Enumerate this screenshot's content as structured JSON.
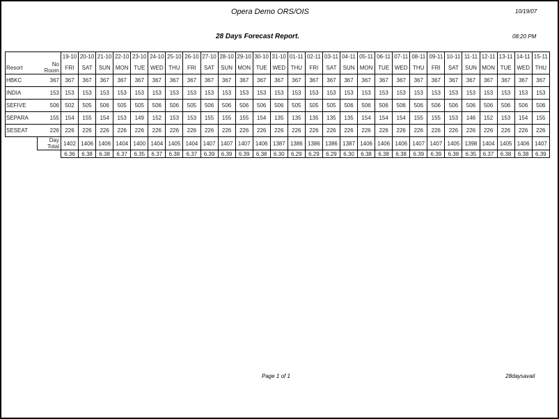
{
  "header": {
    "org": "Opera Demo ORS/OIS",
    "date": "10/19/07",
    "title": "28 Days Forecast Report.",
    "time": "08:20 PM"
  },
  "footer": {
    "page": "Page 1 of 1",
    "report_name": "28daysavail"
  },
  "table": {
    "col_resort": "Resort",
    "col_noroom": "No Room",
    "total_label": "Day Total",
    "dates": [
      "19-10",
      "20-10",
      "21-10",
      "22-10",
      "23-10",
      "24-10",
      "25-10",
      "26-10",
      "27-10",
      "28-10",
      "29-10",
      "30-10",
      "31-10",
      "01-11",
      "02-11",
      "03-11",
      "04-11",
      "05-11",
      "06-11",
      "07-11",
      "08-11",
      "09-11",
      "10-11",
      "11-11",
      "12-11",
      "13-11",
      "14-11",
      "15-11"
    ],
    "days": [
      "FRI",
      "SAT",
      "SUN",
      "MON",
      "TUE",
      "WED",
      "THU",
      "FRI",
      "SAT",
      "SUN",
      "MON",
      "TUE",
      "WED",
      "THU",
      "FRI",
      "SAT",
      "SUN",
      "MON",
      "TUE",
      "WED",
      "THU",
      "FRI",
      "SAT",
      "SUN",
      "MON",
      "TUE",
      "WED",
      "THU"
    ],
    "rows": [
      {
        "resort": "HBKC",
        "no_room": "367",
        "values": [
          "367",
          "367",
          "367",
          "367",
          "367",
          "367",
          "367",
          "367",
          "367",
          "367",
          "367",
          "367",
          "367",
          "367",
          "367",
          "367",
          "367",
          "367",
          "367",
          "367",
          "367",
          "367",
          "367",
          "367",
          "367",
          "367",
          "367",
          "367"
        ]
      },
      {
        "resort": "INDIA",
        "no_room": "153",
        "values": [
          "153",
          "153",
          "153",
          "153",
          "153",
          "153",
          "153",
          "153",
          "153",
          "153",
          "153",
          "153",
          "153",
          "153",
          "153",
          "153",
          "153",
          "153",
          "153",
          "153",
          "153",
          "153",
          "153",
          "153",
          "153",
          "153",
          "153",
          "153"
        ]
      },
      {
        "resort": "SEFIVE",
        "no_room": "506",
        "values": [
          "502",
          "505",
          "506",
          "505",
          "505",
          "506",
          "506",
          "505",
          "506",
          "506",
          "506",
          "506",
          "506",
          "505",
          "505",
          "505",
          "506",
          "506",
          "506",
          "506",
          "506",
          "506",
          "506",
          "506",
          "506",
          "506",
          "506",
          "506"
        ]
      },
      {
        "resort": "SEPARA",
        "no_room": "155",
        "values": [
          "154",
          "155",
          "154",
          "153",
          "149",
          "152",
          "153",
          "153",
          "155",
          "155",
          "155",
          "154",
          "135",
          "135",
          "135",
          "135",
          "135",
          "154",
          "154",
          "154",
          "155",
          "155",
          "153",
          "146",
          "152",
          "153",
          "154",
          "155"
        ]
      },
      {
        "resort": "SESEAT",
        "no_room": "226",
        "values": [
          "226",
          "226",
          "226",
          "226",
          "226",
          "226",
          "226",
          "226",
          "226",
          "226",
          "226",
          "226",
          "226",
          "226",
          "226",
          "226",
          "226",
          "226",
          "226",
          "226",
          "226",
          "226",
          "226",
          "226",
          "226",
          "226",
          "226",
          "226"
        ]
      }
    ],
    "day_totals": [
      "1402",
      "1406",
      "1406",
      "1404",
      "1400",
      "1404",
      "1405",
      "1404",
      "1407",
      "1407",
      "1407",
      "1406",
      "1387",
      "1386",
      "1386",
      "1386",
      "1387",
      "1406",
      "1406",
      "1406",
      "1407",
      "1407",
      "1405",
      "1398",
      "1404",
      "1405",
      "1406",
      "1407"
    ],
    "ratios": [
      "6.36",
      "6.38",
      "6.38",
      "6.37",
      "6.35",
      "6.37",
      "6.38",
      "6.37",
      "6.39",
      "6.39",
      "6.39",
      "6.38",
      "6.30",
      "6.29",
      "6.29",
      "6.29",
      "6.30",
      "6.38",
      "6.38",
      "6.38",
      "6.39",
      "6.39",
      "6.38",
      "6.35",
      "6.37",
      "6.38",
      "6.38",
      "6.39"
    ]
  }
}
